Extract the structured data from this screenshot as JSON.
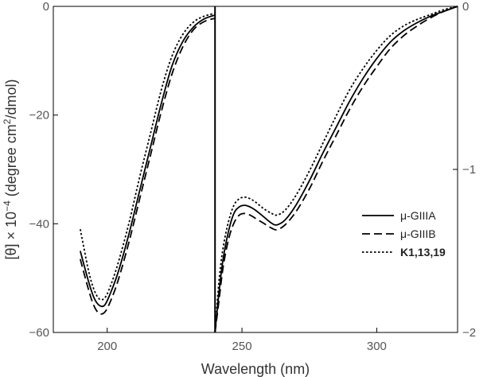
{
  "chart_data": {
    "type": "line",
    "xlabel": "Wavelength (nm)",
    "ylabel_left": "[θ] × 10",
    "ylabel_left_exponent": "−4",
    "ylabel_left_units": " (degree cm",
    "ylabel_left_units_sup": "2",
    "ylabel_left_units_end": "/dmol)",
    "xlim": [
      180,
      330
    ],
    "ylim_left": [
      -60,
      0
    ],
    "ylim_right": [
      -2,
      0
    ],
    "panel_break_x": 240,
    "x_ticks": [
      {
        "value": 200,
        "label": "200"
      },
      {
        "value": 250,
        "label": "250"
      },
      {
        "value": 300,
        "label": "300"
      }
    ],
    "y_ticks_left": [
      {
        "value": 0,
        "label": "0"
      },
      {
        "value": -20,
        "label": "−20"
      },
      {
        "value": -40,
        "label": "−40"
      },
      {
        "value": -60,
        "label": "−60"
      }
    ],
    "y_ticks_right": [
      {
        "value": 0,
        "label": "0"
      },
      {
        "value": -1,
        "label": "−1"
      },
      {
        "value": -2,
        "label": "−2"
      }
    ],
    "series": [
      {
        "name": "μ-GIIIA",
        "style": "solid",
        "bold": false,
        "left": {
          "x": [
            190,
            193,
            195,
            197,
            199,
            201,
            204,
            208,
            212,
            216,
            220,
            224,
            228,
            232,
            236,
            240
          ],
          "y": [
            -45,
            -50.5,
            -53.5,
            -55,
            -55,
            -53,
            -49,
            -42,
            -34,
            -26,
            -18,
            -11,
            -6.5,
            -3.8,
            -2.3,
            -1.6
          ]
        },
        "right": {
          "x": [
            240,
            241.5,
            243,
            245,
            247,
            249,
            251,
            253,
            255,
            258,
            261,
            263,
            266,
            270,
            275,
            280,
            285,
            290,
            295,
            300,
            305,
            310,
            315,
            320,
            325,
            330
          ],
          "y": [
            -2,
            -1.75,
            -1.55,
            -1.38,
            -1.27,
            -1.23,
            -1.22,
            -1.23,
            -1.25,
            -1.29,
            -1.33,
            -1.34,
            -1.31,
            -1.22,
            -1.07,
            -0.9,
            -0.74,
            -0.58,
            -0.44,
            -0.32,
            -0.22,
            -0.15,
            -0.1,
            -0.06,
            -0.03,
            0
          ]
        }
      },
      {
        "name": "μ-GIIIB",
        "style": "dashed",
        "bold": false,
        "left": {
          "x": [
            190,
            193,
            195,
            197,
            199,
            201,
            204,
            208,
            212,
            216,
            220,
            224,
            228,
            232,
            236,
            240
          ],
          "y": [
            -46.5,
            -52,
            -55,
            -56.5,
            -56.3,
            -54.5,
            -50.5,
            -43.5,
            -35.5,
            -27.5,
            -19.5,
            -12.5,
            -7.5,
            -4.3,
            -2.8,
            -2.2
          ]
        },
        "right": {
          "x": [
            240,
            241.5,
            243,
            245,
            247,
            249,
            251,
            253,
            255,
            258,
            261,
            263,
            266,
            270,
            275,
            280,
            285,
            290,
            295,
            300,
            305,
            310,
            315,
            320,
            325,
            330
          ],
          "y": [
            -2,
            -1.8,
            -1.6,
            -1.43,
            -1.33,
            -1.28,
            -1.27,
            -1.28,
            -1.3,
            -1.33,
            -1.36,
            -1.37,
            -1.34,
            -1.26,
            -1.12,
            -0.95,
            -0.79,
            -0.63,
            -0.49,
            -0.37,
            -0.26,
            -0.18,
            -0.12,
            -0.07,
            -0.03,
            0
          ]
        }
      },
      {
        "name": "K1,13,19",
        "style": "dotted",
        "bold": true,
        "left": {
          "x": [
            190,
            193,
            195,
            197,
            199,
            201,
            204,
            208,
            212,
            216,
            220,
            224,
            228,
            232,
            236,
            240
          ],
          "y": [
            -41,
            -48.5,
            -52,
            -53.8,
            -53.7,
            -51.7,
            -47.3,
            -40,
            -31.5,
            -23.5,
            -15.5,
            -9.2,
            -5.2,
            -2.9,
            -1.8,
            -1.3
          ]
        },
        "right": {
          "x": [
            240,
            241.5,
            243,
            245,
            247,
            249,
            251,
            253,
            255,
            258,
            261,
            263,
            266,
            270,
            275,
            280,
            285,
            290,
            295,
            300,
            305,
            310,
            315,
            320,
            325,
            330
          ],
          "y": [
            -2,
            -1.68,
            -1.48,
            -1.32,
            -1.22,
            -1.18,
            -1.17,
            -1.18,
            -1.2,
            -1.24,
            -1.27,
            -1.28,
            -1.25,
            -1.16,
            -1.01,
            -0.84,
            -0.67,
            -0.51,
            -0.38,
            -0.27,
            -0.18,
            -0.12,
            -0.08,
            -0.05,
            -0.02,
            0
          ]
        }
      }
    ],
    "legend_position": "right"
  }
}
